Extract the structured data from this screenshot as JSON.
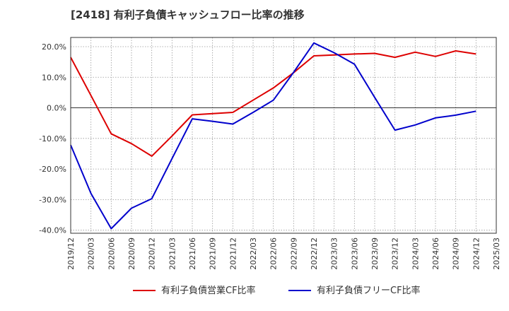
{
  "title": "[2418]  有利子負債キャッシュフロー比率の推移",
  "chart_data": {
    "type": "line",
    "x": [
      "2019/12",
      "2020/03",
      "2020/06",
      "2020/09",
      "2020/12",
      "2021/03",
      "2021/06",
      "2021/09",
      "2021/12",
      "2022/03",
      "2022/06",
      "2022/09",
      "2022/12",
      "2023/03",
      "2023/06",
      "2023/09",
      "2023/12",
      "2024/03",
      "2024/06",
      "2024/09",
      "2024/12",
      "2025/03"
    ],
    "y_ticks": [
      "20.0%",
      "10.0%",
      "0.0%",
      "-10.0%",
      "-20.0%",
      "-30.0%",
      "-40.0%"
    ],
    "ylim": [
      -41,
      23
    ],
    "grid": true,
    "legend_position": "bottom",
    "series": [
      {
        "name": "有利子負債営業CF比率",
        "color": "#dd0000",
        "values": [
          16.5,
          4.0,
          -8.5,
          -11.7,
          -15.8,
          -9.2,
          -2.3,
          -1.9,
          -1.5,
          2.5,
          6.5,
          11.5,
          17.0,
          17.3,
          17.6,
          17.8,
          16.5,
          18.2,
          16.8,
          18.6,
          17.6,
          null
        ]
      },
      {
        "name": "有利子負債フリーCF比率",
        "color": "#0000cc",
        "values": [
          -12.2,
          -28.0,
          -39.5,
          -32.8,
          -29.7,
          -16.6,
          -3.6,
          -4.4,
          -5.3,
          -1.5,
          2.5,
          11.6,
          21.2,
          18.0,
          14.3,
          3.4,
          -7.3,
          -5.6,
          -3.3,
          -2.4,
          -1.1,
          null
        ]
      }
    ]
  }
}
